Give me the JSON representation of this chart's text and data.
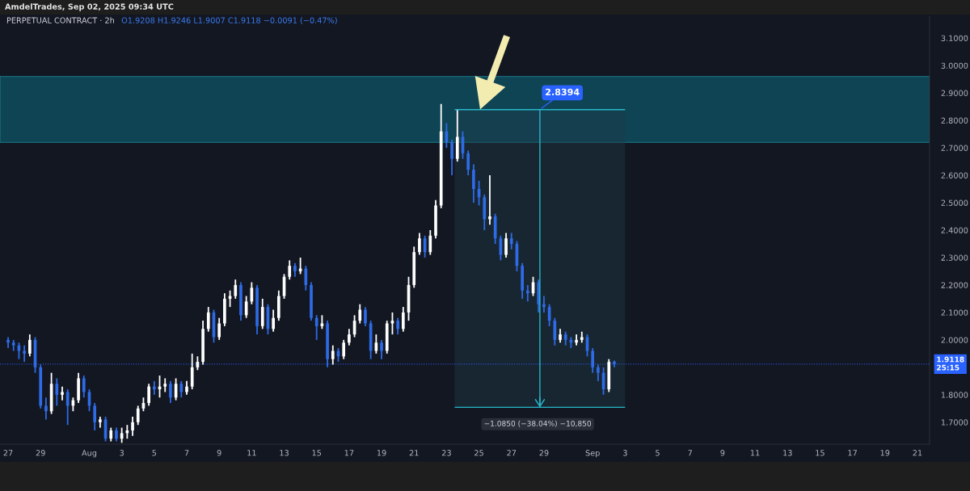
{
  "chart_data": {
    "type": "candlestick",
    "title": "PERPETUAL CONTRACT · 2h",
    "subtitle": "O1.9208 H1.9246 L1.9007 C1.9118 −0.0091 (−0.47%)",
    "annotations": [
      "AmdelTrades, Sep 02, 2025 09:34 UTC",
      {
        "text": "2.8394",
        "x": "2025-08-28T18:00",
        "y": 2.8394
      }
    ],
    "x": [
      "2025-07-27T00:00",
      "2025-07-27T08:00",
      "2025-07-27T16:00",
      "2025-07-28T00:00",
      "2025-07-28T08:00",
      "2025-07-28T16:00",
      "2025-07-29T00:00",
      "2025-07-29T08:00",
      "2025-07-29T16:00",
      "2025-07-30T00:00",
      "2025-07-30T08:00",
      "2025-07-30T16:00",
      "2025-07-31T00:00",
      "2025-07-31T08:00",
      "2025-07-31T16:00",
      "2025-08-01T00:00",
      "2025-08-01T08:00",
      "2025-08-01T16:00",
      "2025-08-02T00:00",
      "2025-08-02T08:00",
      "2025-08-02T16:00",
      "2025-08-03T00:00",
      "2025-08-03T08:00",
      "2025-08-03T16:00",
      "2025-08-04T00:00",
      "2025-08-04T08:00",
      "2025-08-04T16:00",
      "2025-08-05T00:00",
      "2025-08-05T08:00",
      "2025-08-05T16:00",
      "2025-08-06T00:00",
      "2025-08-06T08:00",
      "2025-08-06T16:00",
      "2025-08-07T00:00",
      "2025-08-07T08:00",
      "2025-08-07T16:00",
      "2025-08-08T00:00",
      "2025-08-08T08:00",
      "2025-08-08T16:00",
      "2025-08-09T00:00",
      "2025-08-09T08:00",
      "2025-08-09T16:00",
      "2025-08-10T00:00",
      "2025-08-10T08:00",
      "2025-08-10T16:00",
      "2025-08-11T00:00",
      "2025-08-11T08:00",
      "2025-08-11T16:00",
      "2025-08-12T00:00",
      "2025-08-12T08:00",
      "2025-08-12T16:00",
      "2025-08-13T00:00",
      "2025-08-13T08:00",
      "2025-08-13T16:00",
      "2025-08-14T00:00",
      "2025-08-14T08:00",
      "2025-08-14T16:00",
      "2025-08-15T00:00",
      "2025-08-15T08:00",
      "2025-08-15T16:00",
      "2025-08-16T00:00",
      "2025-08-16T08:00",
      "2025-08-16T16:00",
      "2025-08-17T00:00",
      "2025-08-17T08:00",
      "2025-08-17T16:00",
      "2025-08-18T00:00",
      "2025-08-18T08:00",
      "2025-08-18T16:00",
      "2025-08-19T00:00",
      "2025-08-19T08:00",
      "2025-08-19T16:00",
      "2025-08-20T00:00",
      "2025-08-20T08:00",
      "2025-08-20T16:00",
      "2025-08-21T00:00",
      "2025-08-21T08:00",
      "2025-08-21T16:00",
      "2025-08-22T00:00",
      "2025-08-22T08:00",
      "2025-08-22T16:00",
      "2025-08-23T00:00",
      "2025-08-23T08:00",
      "2025-08-23T16:00",
      "2025-08-24T00:00",
      "2025-08-24T08:00",
      "2025-08-24T16:00",
      "2025-08-25T00:00",
      "2025-08-25T08:00",
      "2025-08-25T16:00",
      "2025-08-26T00:00",
      "2025-08-26T08:00",
      "2025-08-26T16:00",
      "2025-08-27T00:00",
      "2025-08-27T08:00",
      "2025-08-27T16:00",
      "2025-08-28T00:00",
      "2025-08-28T08:00",
      "2025-08-28T16:00",
      "2025-08-29T00:00",
      "2025-08-29T08:00",
      "2025-08-29T16:00",
      "2025-08-30T00:00",
      "2025-08-30T08:00",
      "2025-08-30T16:00",
      "2025-08-31T00:00",
      "2025-08-31T08:00",
      "2025-08-31T16:00",
      "2025-09-01T00:00",
      "2025-09-01T08:00",
      "2025-09-01T16:00",
      "2025-09-02T00:00",
      "2025-09-02T08:00"
    ],
    "ohlc": [
      [
        2.0,
        2.01,
        1.97,
        1.99
      ],
      [
        1.99,
        2.0,
        1.96,
        1.98
      ],
      [
        1.98,
        1.99,
        1.93,
        1.96
      ],
      [
        1.96,
        1.98,
        1.92,
        1.95
      ],
      [
        1.95,
        2.02,
        1.94,
        2.0
      ],
      [
        2.0,
        2.01,
        1.88,
        1.9
      ],
      [
        1.9,
        1.91,
        1.75,
        1.76
      ],
      [
        1.76,
        1.79,
        1.71,
        1.74
      ],
      [
        1.74,
        1.88,
        1.73,
        1.84
      ],
      [
        1.84,
        1.86,
        1.76,
        1.8
      ],
      [
        1.8,
        1.83,
        1.78,
        1.81
      ],
      [
        1.81,
        1.82,
        1.69,
        1.76
      ],
      [
        1.76,
        1.79,
        1.74,
        1.78
      ],
      [
        1.78,
        1.88,
        1.77,
        1.86
      ],
      [
        1.86,
        1.87,
        1.79,
        1.81
      ],
      [
        1.81,
        1.82,
        1.74,
        1.76
      ],
      [
        1.76,
        1.77,
        1.67,
        1.7
      ],
      [
        1.7,
        1.72,
        1.68,
        1.71
      ],
      [
        1.71,
        1.72,
        1.63,
        1.64
      ],
      [
        1.64,
        1.68,
        1.63,
        1.67
      ],
      [
        1.67,
        1.68,
        1.63,
        1.64
      ],
      [
        1.64,
        1.68,
        1.625,
        1.66
      ],
      [
        1.66,
        1.69,
        1.64,
        1.67
      ],
      [
        1.67,
        1.72,
        1.65,
        1.7
      ],
      [
        1.7,
        1.76,
        1.69,
        1.75
      ],
      [
        1.75,
        1.79,
        1.74,
        1.77
      ],
      [
        1.77,
        1.84,
        1.76,
        1.83
      ],
      [
        1.83,
        1.85,
        1.8,
        1.82
      ],
      [
        1.82,
        1.87,
        1.79,
        1.83
      ],
      [
        1.83,
        1.86,
        1.81,
        1.84
      ],
      [
        1.84,
        1.85,
        1.77,
        1.79
      ],
      [
        1.79,
        1.86,
        1.78,
        1.84
      ],
      [
        1.84,
        1.85,
        1.79,
        1.81
      ],
      [
        1.81,
        1.85,
        1.8,
        1.83
      ],
      [
        1.83,
        1.95,
        1.82,
        1.9
      ],
      [
        1.9,
        1.94,
        1.89,
        1.92
      ],
      [
        1.92,
        2.07,
        1.91,
        2.04
      ],
      [
        2.04,
        2.12,
        2.03,
        2.1
      ],
      [
        2.1,
        2.11,
        1.99,
        2.01
      ],
      [
        2.01,
        2.08,
        2.0,
        2.06
      ],
      [
        2.06,
        2.17,
        2.05,
        2.15
      ],
      [
        2.15,
        2.18,
        2.12,
        2.16
      ],
      [
        2.16,
        2.22,
        2.15,
        2.2
      ],
      [
        2.2,
        2.21,
        2.07,
        2.09
      ],
      [
        2.09,
        2.16,
        2.08,
        2.14
      ],
      [
        2.14,
        2.21,
        2.13,
        2.19
      ],
      [
        2.19,
        2.2,
        2.02,
        2.05
      ],
      [
        2.05,
        2.15,
        2.04,
        2.12
      ],
      [
        2.12,
        2.13,
        2.02,
        2.04
      ],
      [
        2.04,
        2.11,
        2.03,
        2.08
      ],
      [
        2.08,
        2.18,
        2.07,
        2.16
      ],
      [
        2.16,
        2.24,
        2.15,
        2.23
      ],
      [
        2.23,
        2.29,
        2.22,
        2.27
      ],
      [
        2.27,
        2.28,
        2.23,
        2.25
      ],
      [
        2.25,
        2.3,
        2.24,
        2.26
      ],
      [
        2.26,
        2.27,
        2.18,
        2.2
      ],
      [
        2.2,
        2.21,
        2.07,
        2.08
      ],
      [
        2.08,
        2.09,
        2.0,
        2.05
      ],
      [
        2.05,
        2.09,
        2.04,
        2.06
      ],
      [
        2.06,
        2.07,
        1.9,
        1.93
      ],
      [
        1.93,
        1.98,
        1.91,
        1.96
      ],
      [
        1.96,
        1.97,
        1.92,
        1.94
      ],
      [
        1.94,
        2.0,
        1.93,
        1.99
      ],
      [
        1.99,
        2.04,
        1.98,
        2.02
      ],
      [
        2.02,
        2.09,
        2.01,
        2.07
      ],
      [
        2.07,
        2.13,
        2.06,
        2.11
      ],
      [
        2.11,
        2.12,
        2.05,
        2.06
      ],
      [
        2.06,
        2.07,
        1.93,
        1.96
      ],
      [
        1.96,
        2.02,
        1.95,
        1.99
      ],
      [
        1.99,
        2.0,
        1.93,
        1.96
      ],
      [
        1.96,
        2.07,
        1.95,
        2.06
      ],
      [
        2.06,
        2.1,
        2.02,
        2.07
      ],
      [
        2.07,
        2.08,
        2.02,
        2.04
      ],
      [
        2.04,
        2.12,
        2.03,
        2.1
      ],
      [
        2.1,
        2.23,
        2.07,
        2.2
      ],
      [
        2.2,
        2.34,
        2.19,
        2.32
      ],
      [
        2.32,
        2.39,
        2.31,
        2.37
      ],
      [
        2.37,
        2.38,
        2.3,
        2.32
      ],
      [
        2.32,
        2.4,
        2.31,
        2.38
      ],
      [
        2.38,
        2.51,
        2.37,
        2.49
      ],
      [
        2.49,
        2.86,
        2.48,
        2.76
      ],
      [
        2.76,
        2.79,
        2.7,
        2.72
      ],
      [
        2.72,
        2.73,
        2.6,
        2.66
      ],
      [
        2.66,
        2.84,
        2.65,
        2.74
      ],
      [
        2.74,
        2.76,
        2.66,
        2.68
      ],
      [
        2.68,
        2.69,
        2.6,
        2.62
      ],
      [
        2.62,
        2.64,
        2.5,
        2.55
      ],
      [
        2.55,
        2.58,
        2.49,
        2.52
      ],
      [
        2.52,
        2.53,
        2.4,
        2.44
      ],
      [
        2.44,
        2.6,
        2.42,
        2.45
      ],
      [
        2.45,
        2.46,
        2.35,
        2.37
      ],
      [
        2.37,
        2.38,
        2.29,
        2.31
      ],
      [
        2.31,
        2.39,
        2.3,
        2.37
      ],
      [
        2.37,
        2.39,
        2.33,
        2.35
      ],
      [
        2.35,
        2.36,
        2.25,
        2.27
      ],
      [
        2.27,
        2.28,
        2.15,
        2.18
      ],
      [
        2.18,
        2.2,
        2.14,
        2.17
      ],
      [
        2.17,
        2.23,
        2.16,
        2.21
      ],
      [
        2.21,
        2.22,
        2.1,
        2.13
      ],
      [
        2.13,
        2.16,
        2.1,
        2.12
      ],
      [
        2.12,
        2.13,
        2.05,
        2.07
      ],
      [
        2.07,
        2.08,
        1.98,
        2.0
      ],
      [
        2.0,
        2.04,
        1.99,
        2.02
      ],
      [
        2.02,
        2.03,
        1.98,
        2.0
      ],
      [
        2.0,
        2.01,
        1.97,
        1.99
      ],
      [
        1.99,
        2.02,
        1.98,
        2.0
      ],
      [
        2.0,
        2.03,
        1.99,
        2.01
      ],
      [
        2.01,
        2.02,
        1.94,
        1.96
      ],
      [
        1.96,
        1.97,
        1.88,
        1.9
      ],
      [
        1.9,
        1.91,
        1.85,
        1.88
      ],
      [
        1.88,
        1.9,
        1.8,
        1.82
      ],
      [
        1.82,
        1.93,
        1.81,
        1.92
      ],
      [
        1.9208,
        1.9246,
        1.9007,
        1.9118
      ]
    ],
    "colors": [
      "#2e6be6",
      "#2e6be6",
      "#2e6be6",
      "#2e6be6",
      "#ffffff",
      "#2e6be6",
      "#2e6be6",
      "#2e6be6",
      "#ffffff",
      "#2e6be6",
      "#ffffff",
      "#2e6be6",
      "#ffffff",
      "#ffffff",
      "#2e6be6",
      "#2e6be6",
      "#2e6be6",
      "#ffffff",
      "#2e6be6",
      "#ffffff",
      "#2e6be6",
      "#ffffff",
      "#ffffff",
      "#ffffff",
      "#ffffff",
      "#ffffff",
      "#ffffff",
      "#2e6be6",
      "#ffffff",
      "#ffffff",
      "#2e6be6",
      "#ffffff",
      "#2e6be6",
      "#ffffff",
      "#ffffff",
      "#ffffff",
      "#ffffff",
      "#ffffff",
      "#2e6be6",
      "#ffffff",
      "#ffffff",
      "#ffffff",
      "#ffffff",
      "#2e6be6",
      "#ffffff",
      "#ffffff",
      "#2e6be6",
      "#ffffff",
      "#2e6be6",
      "#ffffff",
      "#ffffff",
      "#ffffff",
      "#ffffff",
      "#2e6be6",
      "#ffffff",
      "#2e6be6",
      "#2e6be6",
      "#2e6be6",
      "#ffffff",
      "#2e6be6",
      "#ffffff",
      "#2e6be6",
      "#ffffff",
      "#ffffff",
      "#ffffff",
      "#ffffff",
      "#2e6be6",
      "#2e6be6",
      "#ffffff",
      "#2e6be6",
      "#ffffff",
      "#ffffff",
      "#2e6be6",
      "#ffffff",
      "#ffffff",
      "#ffffff",
      "#ffffff",
      "#2e6be6",
      "#ffffff",
      "#ffffff",
      "#ffffff",
      "#2e6be6",
      "#2e6be6",
      "#ffffff",
      "#2e6be6",
      "#2e6be6",
      "#2e6be6",
      "#2e6be6",
      "#2e6be6",
      "#ffffff",
      "#2e6be6",
      "#2e6be6",
      "#ffffff",
      "#2e6be6",
      "#2e6be6",
      "#2e6be6",
      "#2e6be6",
      "#ffffff",
      "#2e6be6",
      "#2e6be6",
      "#2e6be6",
      "#2e6be6",
      "#ffffff",
      "#2e6be6",
      "#2e6be6",
      "#ffffff",
      "#ffffff",
      "#2e6be6",
      "#2e6be6",
      "#2e6be6",
      "#2e6be6",
      "#ffffff",
      "#2e6be6"
    ],
    "series": [
      {
        "type": "bar",
        "x": [
          "2025-08-28T18:00"
        ],
        "base": [
          2.8394
        ],
        "values": [
          -1.085
        ],
        "color": "#1f3a46",
        "value_labels": [
          "−1.0850 (−38.04%) −10,850"
        ]
      },
      {
        "type": "bar",
        "x": [
          "2025-08-28T18:00"
        ],
        "base": [
          2.8394
        ],
        "values": [
          -1.085
        ],
        "color": "#26b7c9"
      }
    ],
    "xlim": [
      "2025-07-26T12:00",
      "2025-09-21T18:00"
    ],
    "ylim": [
      1.62,
      3.18
    ],
    "xticks": [
      {
        "value": "2025-07-27",
        "label": "27"
      },
      {
        "value": "2025-07-29",
        "label": "29"
      },
      {
        "value": "2025-08-01",
        "label": "Aug"
      },
      {
        "value": "2025-08-03",
        "label": "3"
      },
      {
        "value": "2025-08-05",
        "label": "5"
      },
      {
        "value": "2025-08-07",
        "label": "7"
      },
      {
        "value": "2025-08-09",
        "label": "9"
      },
      {
        "value": "2025-08-11",
        "label": "11"
      },
      {
        "value": "2025-08-13",
        "label": "13"
      },
      {
        "value": "2025-08-15",
        "label": "15"
      },
      {
        "value": "2025-08-17",
        "label": "17"
      },
      {
        "value": "2025-08-19",
        "label": "19"
      },
      {
        "value": "2025-08-21",
        "label": "21"
      },
      {
        "value": "2025-08-23",
        "label": "23"
      },
      {
        "value": "2025-08-25",
        "label": "25"
      },
      {
        "value": "2025-08-27",
        "label": "27"
      },
      {
        "value": "2025-08-29",
        "label": "29"
      },
      {
        "value": "2025-09-01",
        "label": "Sep"
      },
      {
        "value": "2025-09-03",
        "label": "3"
      },
      {
        "value": "2025-09-05",
        "label": "5"
      },
      {
        "value": "2025-09-07",
        "label": "7"
      },
      {
        "value": "2025-09-09",
        "label": "9"
      },
      {
        "value": "2025-09-11",
        "label": "11"
      },
      {
        "value": "2025-09-13",
        "label": "13"
      },
      {
        "value": "2025-09-15",
        "label": "15"
      },
      {
        "value": "2025-09-17",
        "label": "17"
      },
      {
        "value": "2025-09-19",
        "label": "19"
      },
      {
        "value": "2025-09-21",
        "label": "21"
      }
    ],
    "yticks": [
      {
        "value": 1.7,
        "label": "1.7000"
      },
      {
        "value": 1.8,
        "label": "1.8000"
      },
      {
        "value": 2.0,
        "label": "2.0000"
      },
      {
        "value": 2.1,
        "label": "2.1000"
      },
      {
        "value": 2.2,
        "label": "2.2000"
      },
      {
        "value": 2.3,
        "label": "2.3000"
      },
      {
        "value": 2.4,
        "label": "2.4000"
      },
      {
        "value": 2.5,
        "label": "2.5000"
      },
      {
        "value": 2.6,
        "label": "2.6000"
      },
      {
        "value": 2.7,
        "label": "2.7000"
      },
      {
        "value": 2.8,
        "label": "2.8000"
      },
      {
        "value": 2.9,
        "label": "2.9000"
      },
      {
        "value": 3.0,
        "label": "3.0000"
      },
      {
        "value": 3.1,
        "label": "3.1000"
      }
    ],
    "bands": [
      {
        "axis": "y",
        "from": 2.72,
        "to": 2.96,
        "color": "#0e4454"
      }
    ],
    "ref_lines": [
      {
        "axis": "y",
        "value": 1.9118,
        "label": "1.9118\n25:15",
        "color": "#2962ff",
        "line_style": "dotted"
      }
    ]
  }
}
